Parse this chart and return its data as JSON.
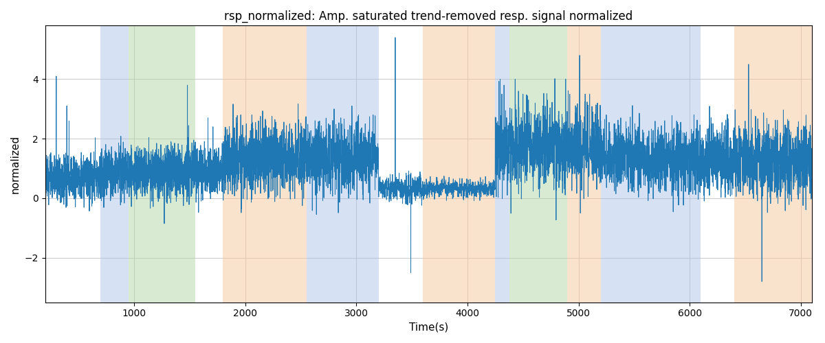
{
  "title": "rsp_normalized: Amp. saturated trend-removed resp. signal normalized",
  "xlabel": "Time(s)",
  "ylabel": "normalized",
  "xlim": [
    200,
    7100
  ],
  "ylim": [
    -3.5,
    5.8
  ],
  "yticks": [
    -2,
    0,
    2,
    4
  ],
  "signal_color": "#1f77b4",
  "bg_bands": [
    {
      "xmin": 700,
      "xmax": 950,
      "color": "#aec6e8",
      "alpha": 0.5
    },
    {
      "xmin": 950,
      "xmax": 1550,
      "color": "#b5d6a7",
      "alpha": 0.5
    },
    {
      "xmin": 1800,
      "xmax": 2550,
      "color": "#f7c89b",
      "alpha": 0.5
    },
    {
      "xmin": 2550,
      "xmax": 3200,
      "color": "#aec6e8",
      "alpha": 0.5
    },
    {
      "xmin": 3600,
      "xmax": 4250,
      "color": "#f7c89b",
      "alpha": 0.5
    },
    {
      "xmin": 4250,
      "xmax": 4380,
      "color": "#aec6e8",
      "alpha": 0.5
    },
    {
      "xmin": 4380,
      "xmax": 4900,
      "color": "#b5d6a7",
      "alpha": 0.5
    },
    {
      "xmin": 4900,
      "xmax": 5200,
      "color": "#f7c89b",
      "alpha": 0.5
    },
    {
      "xmin": 5200,
      "xmax": 6100,
      "color": "#aec6e8",
      "alpha": 0.5
    },
    {
      "xmin": 6400,
      "xmax": 7100,
      "color": "#f7c89b",
      "alpha": 0.5
    }
  ],
  "grid_color": "#cccccc",
  "background_color": "#ffffff",
  "seed": 42,
  "n_points": 6900,
  "t_start": 200,
  "t_end": 7100,
  "xticks": [
    1000,
    2000,
    3000,
    4000,
    5000,
    6000,
    7000
  ]
}
